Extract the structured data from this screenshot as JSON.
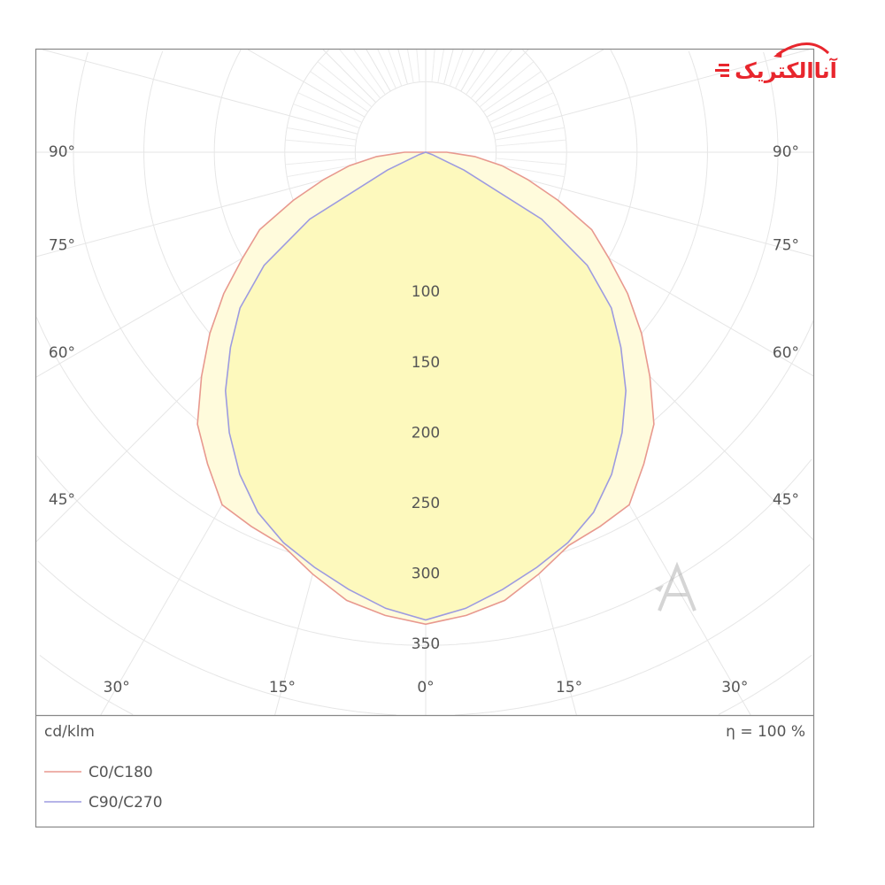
{
  "chart_data": {
    "type": "polar",
    "unit_label": "cd/klm",
    "efficiency_label": "η = 100 %",
    "radial_ticks": [
      100,
      150,
      200,
      250,
      300,
      350
    ],
    "radial_tick_labels": [
      "100",
      "150",
      "200",
      "250",
      "300",
      "350"
    ],
    "radial_grid_step": 50,
    "angle_labels_left": [
      "90°",
      "75°",
      "60°",
      "45°",
      "30°",
      "15°"
    ],
    "angle_label_center": "0°",
    "angle_labels_right": [
      "15°",
      "30°",
      "45°",
      "60°",
      "75°",
      "90°"
    ],
    "angle_label_values": [
      90,
      75,
      60,
      45,
      30,
      15
    ],
    "angles": [
      0,
      5,
      10,
      15,
      20,
      25,
      30,
      35,
      40,
      45,
      50,
      55,
      60,
      65,
      70,
      75,
      80,
      85,
      90
    ],
    "series": [
      {
        "name": "C0/C180",
        "color": "#e8998f",
        "fill": "#fffbdc",
        "values": [
          335,
          330,
          323,
          310,
          297,
          293,
          289,
          270,
          252,
          225,
          200,
          175,
          150,
          130,
          100,
          75,
          55,
          35,
          15
        ]
      },
      {
        "name": "C90/C270",
        "color": "#9d9be0",
        "fill": "#fdf9bd",
        "values": [
          332,
          325,
          315,
          305,
          295,
          282,
          264,
          243,
          221,
          196,
          172,
          140,
          95,
          30,
          5,
          0,
          0,
          0,
          0
        ]
      }
    ],
    "grid": true,
    "legend_placement": "bottom-left"
  },
  "logo": {
    "text": "آناالکتریک",
    "color": "#e8262d"
  }
}
